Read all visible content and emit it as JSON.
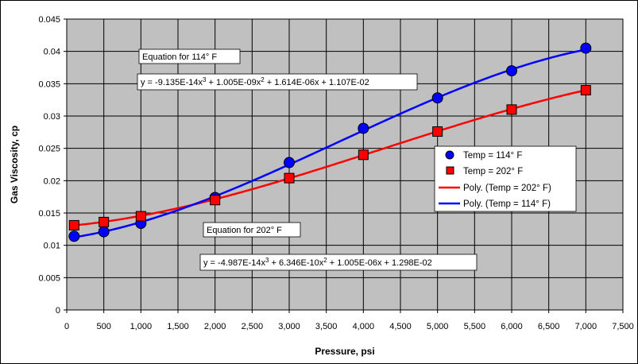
{
  "chart_data": {
    "type": "scatter",
    "xlabel": "Pressure, psi",
    "ylabel": "Gas Viscosity, cp",
    "xlim": [
      0,
      7500
    ],
    "ylim": [
      0,
      0.045
    ],
    "x_ticks": [
      "0",
      "500",
      "1,000",
      "1,500",
      "2,000",
      "2,500",
      "3,000",
      "3,500",
      "4,000",
      "4,500",
      "5,000",
      "5,500",
      "6,000",
      "6,500",
      "7,000",
      "7,500"
    ],
    "y_ticks": [
      "0",
      "0.005",
      "0.01",
      "0.015",
      "0.02",
      "0.025",
      "0.03",
      "0.035",
      "0.04",
      "0.045"
    ],
    "grid": true,
    "background": "#c0c0c0",
    "series": [
      {
        "name": "Temp = 114° F",
        "marker": "circle",
        "color": "#0000ff",
        "x": [
          100,
          500,
          1000,
          2000,
          3000,
          4000,
          5000,
          6000,
          7000
        ],
        "y": [
          0.0114,
          0.0121,
          0.0134,
          0.0174,
          0.0228,
          0.0281,
          0.0328,
          0.037,
          0.0405
        ]
      },
      {
        "name": "Temp = 202° F",
        "marker": "square",
        "color": "#ff0000",
        "x": [
          100,
          500,
          1000,
          2000,
          3000,
          4000,
          5000,
          6000,
          7000
        ],
        "y": [
          0.0131,
          0.0136,
          0.0145,
          0.017,
          0.0204,
          0.024,
          0.0276,
          0.031,
          0.034
        ]
      }
    ],
    "fits": [
      {
        "name": "Poly. (Temp = 202° F)",
        "color": "#ff0000",
        "coefficients": [
          -4.987e-14,
          6.346e-10,
          1.005e-06,
          0.01298
        ]
      },
      {
        "name": "Poly. (Temp = 114° F)",
        "color": "#0000ff",
        "coefficients": [
          -9.135e-14,
          1.005e-09,
          1.614e-06,
          0.01107
        ]
      }
    ],
    "legend_position": "right",
    "annotations": {
      "eq114_title": "Equation for 114° F",
      "eq114_parts": [
        "y = -9.135E-14x",
        "3",
        " + 1.005E-09x",
        "2",
        " + 1.614E-06x + 1.107E-02"
      ],
      "eq202_title": "Equation for 202° F",
      "eq202_parts": [
        "y = -4.987E-14x",
        "3",
        " + 6.346E-10x",
        "2",
        " + 1.005E-06x + 1.298E-02"
      ]
    }
  }
}
